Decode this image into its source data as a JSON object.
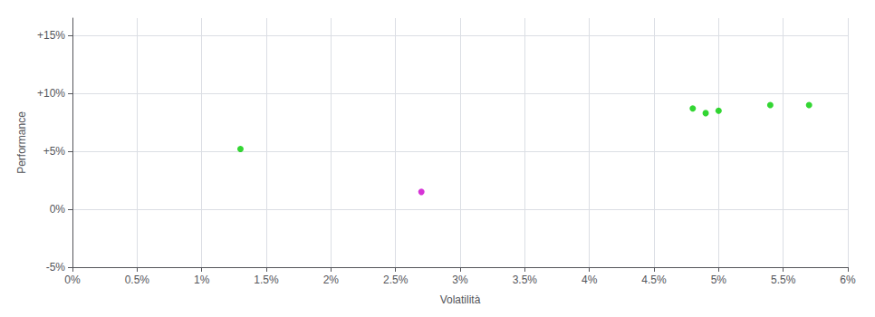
{
  "chart_data": {
    "type": "scatter",
    "xlabel": "Volatilità",
    "ylabel": "Performance",
    "xlim": [
      0.0,
      0.06
    ],
    "ylim": [
      -0.05,
      0.165
    ],
    "xticks": [
      {
        "value": 0.0,
        "label": "0%"
      },
      {
        "value": 0.005,
        "label": "0.5%"
      },
      {
        "value": 0.01,
        "label": "1%"
      },
      {
        "value": 0.015,
        "label": "1.5%"
      },
      {
        "value": 0.02,
        "label": "2%"
      },
      {
        "value": 0.025,
        "label": "2.5%"
      },
      {
        "value": 0.03,
        "label": "3%"
      },
      {
        "value": 0.035,
        "label": "3.5%"
      },
      {
        "value": 0.04,
        "label": "4%"
      },
      {
        "value": 0.045,
        "label": "4.5%"
      },
      {
        "value": 0.05,
        "label": "5%"
      },
      {
        "value": 0.055,
        "label": "5.5%"
      },
      {
        "value": 0.06,
        "label": "6%"
      }
    ],
    "yticks": [
      {
        "value": -0.05,
        "label": "-5%"
      },
      {
        "value": 0.0,
        "label": "0%"
      },
      {
        "value": 0.05,
        "label": "+5%"
      },
      {
        "value": 0.1,
        "label": "+10%"
      },
      {
        "value": 0.15,
        "label": "+15%"
      }
    ],
    "grid": true,
    "series": [
      {
        "color": "#00cc00",
        "x": [
          0.013,
          0.048,
          0.049,
          0.05,
          0.054,
          0.057
        ],
        "values": [
          0.052,
          0.087,
          0.083,
          0.085,
          0.09,
          0.09
        ]
      },
      {
        "color": "#cc00cc",
        "x": [
          0.027
        ],
        "values": [
          0.015
        ]
      }
    ]
  }
}
